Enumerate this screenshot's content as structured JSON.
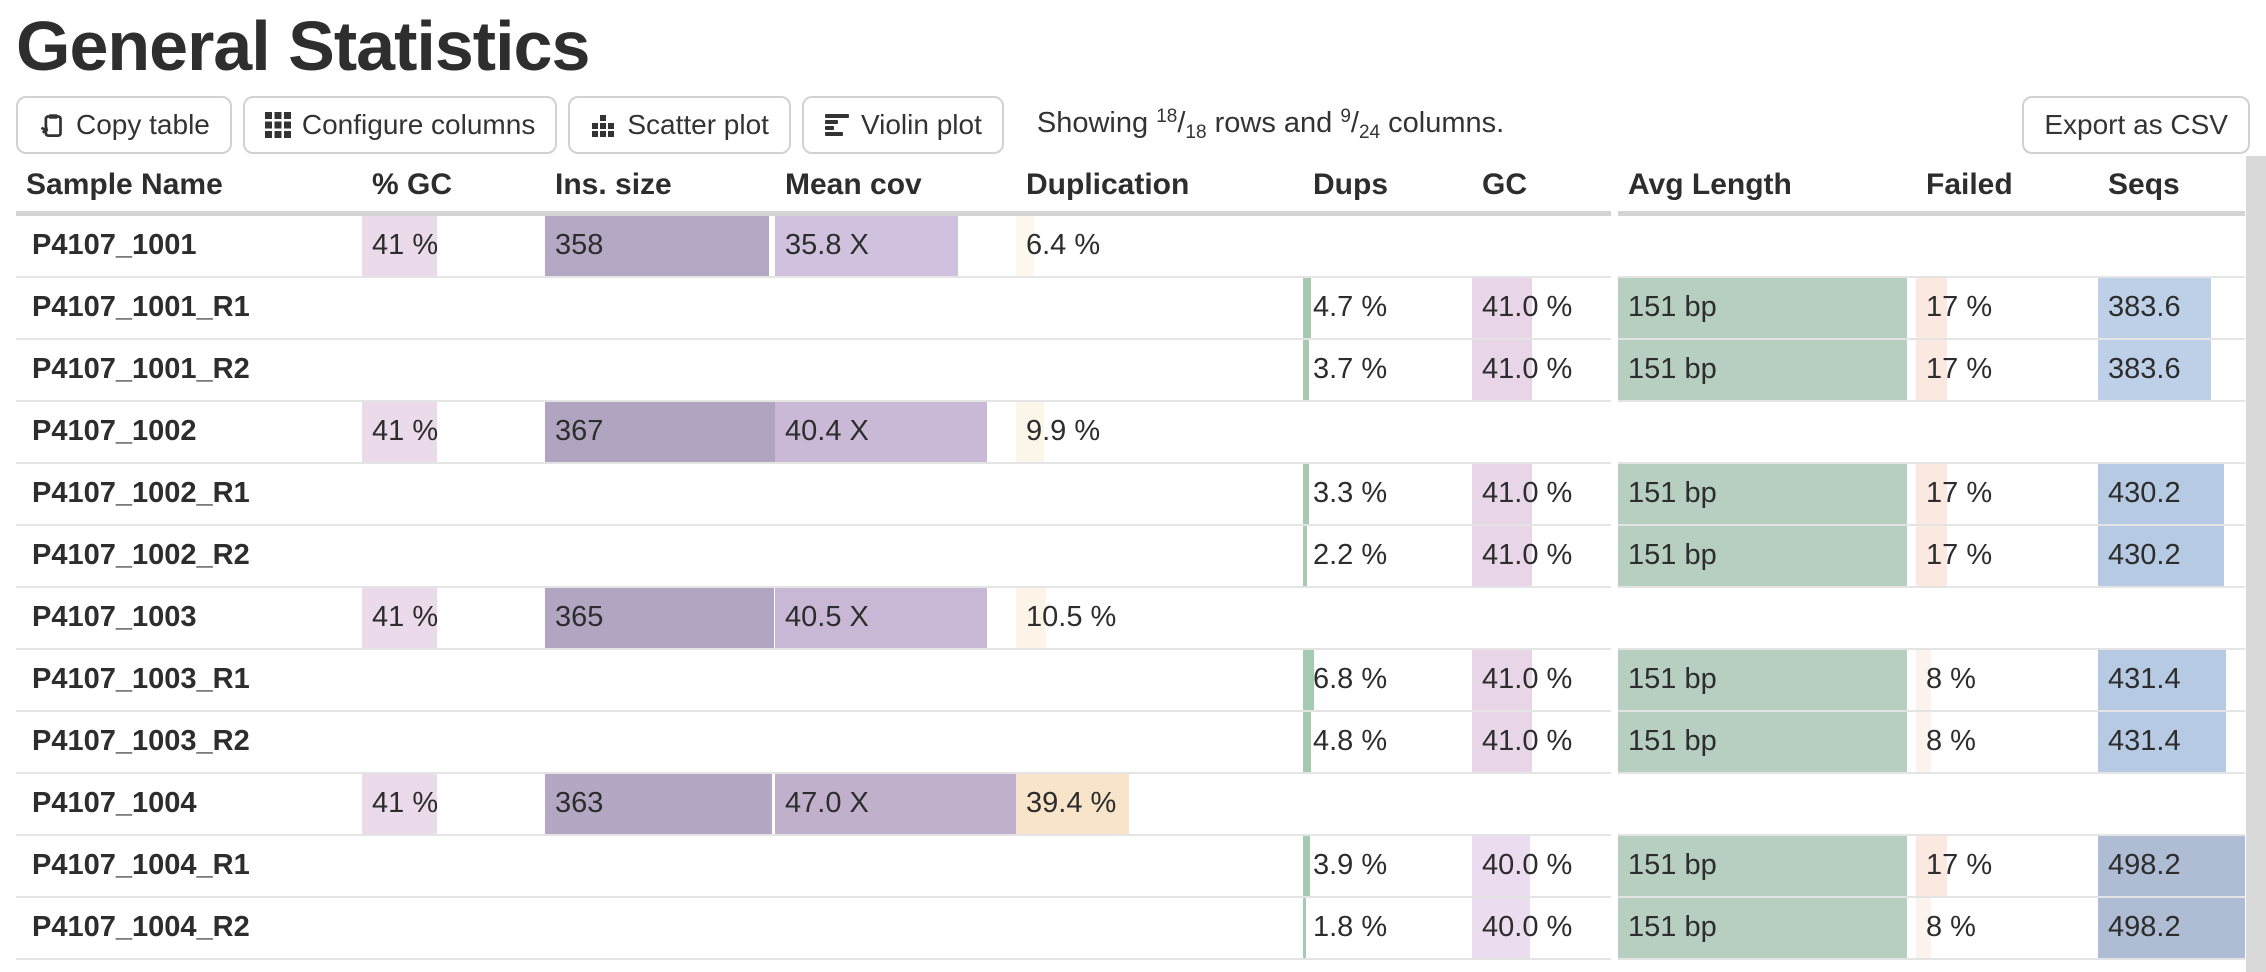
{
  "page": {
    "title": "General Statistics"
  },
  "toolbar": {
    "copy_table": "Copy table",
    "configure_columns": "Configure columns",
    "scatter_plot": "Scatter plot",
    "violin_plot": "Violin plot",
    "export_csv": "Export as CSV",
    "showing": {
      "prefix": "Showing ",
      "rows_shown": "18",
      "rows_total": "18",
      "between": " rows and ",
      "cols_shown": "9",
      "cols_total": "24",
      "suffix": " columns."
    }
  },
  "colors": {
    "row_divider": "#e4e4e4",
    "header_divider": "#d4d4d4",
    "gc_pink": "#e8d7e8",
    "ins_purple": "#b4a7c3",
    "cov_purple": "#c9b8d6",
    "dup_peach": "#f8e4c9",
    "dups_green": "#a6c9b1",
    "len_green": "#b7cfc1",
    "failed_peach": "#fbe8e0",
    "seqs_blue": "#b6cae3",
    "scrollbar": "#d9d9d9"
  },
  "table": {
    "columns": [
      "Sample Name",
      "% GC",
      "Ins. size",
      "Mean cov",
      "Duplication",
      "Dups",
      "GC",
      "Avg Length",
      "Failed",
      "Seqs"
    ],
    "rows": [
      {
        "cells": [
          {
            "text": "P4107_1001"
          },
          {
            "text": "41 %",
            "bar": 41,
            "color": "#eadaea"
          },
          {
            "text": "358",
            "bar": 97.5,
            "color": "#b5a8c4"
          },
          {
            "text": "35.8 X",
            "bar": 76,
            "color": "#d0c2de"
          },
          {
            "text": "6.4 %",
            "bar": 6.4,
            "color": "#fdf8ee"
          },
          null,
          null,
          null,
          null,
          null
        ]
      },
      {
        "cells": [
          {
            "text": "P4107_1001_R1"
          },
          null,
          null,
          null,
          null,
          {
            "text": "4.7 %",
            "bar": 4.7,
            "color": "#a6c9b1"
          },
          {
            "text": "41.0 %",
            "bar": 43,
            "color": "#e8d6e8"
          },
          {
            "text": "151 bp",
            "bar": 97,
            "color": "#b7cfc1"
          },
          {
            "text": "17 %",
            "bar": 17,
            "color": "#fbe8e0"
          },
          {
            "text": "383.6",
            "bar": 77,
            "color": "#bed0e8"
          }
        ]
      },
      {
        "cells": [
          {
            "text": "P4107_1001_R2"
          },
          null,
          null,
          null,
          null,
          {
            "text": "3.7 %",
            "bar": 3.7,
            "color": "#a6c9b1"
          },
          {
            "text": "41.0 %",
            "bar": 43,
            "color": "#e8d6e8"
          },
          {
            "text": "151 bp",
            "bar": 97,
            "color": "#b7cfc1"
          },
          {
            "text": "17 %",
            "bar": 17,
            "color": "#fbe8e0"
          },
          {
            "text": "383.6",
            "bar": 77,
            "color": "#bed0e8"
          }
        ]
      },
      {
        "cells": [
          {
            "text": "P4107_1002"
          },
          {
            "text": "41 %",
            "bar": 41,
            "color": "#eadaea"
          },
          {
            "text": "367",
            "bar": 100,
            "color": "#b1a4c1"
          },
          {
            "text": "40.4 X",
            "bar": 88,
            "color": "#c9b8d6"
          },
          {
            "text": "9.9 %",
            "bar": 9.9,
            "color": "#fcf5e9"
          },
          null,
          null,
          null,
          null,
          null
        ]
      },
      {
        "cells": [
          {
            "text": "P4107_1002_R1"
          },
          null,
          null,
          null,
          null,
          {
            "text": "3.3 %",
            "bar": 3.3,
            "color": "#a6c9b1"
          },
          {
            "text": "41.0 %",
            "bar": 43,
            "color": "#e8d6e8"
          },
          {
            "text": "151 bp",
            "bar": 97,
            "color": "#b7cfc1"
          },
          {
            "text": "17 %",
            "bar": 17,
            "color": "#fbe8e0"
          },
          {
            "text": "430.2",
            "bar": 86,
            "color": "#b6cae3"
          }
        ]
      },
      {
        "cells": [
          {
            "text": "P4107_1002_R2"
          },
          null,
          null,
          null,
          null,
          {
            "text": "2.2 %",
            "bar": 2.2,
            "color": "#a6c9b1"
          },
          {
            "text": "41.0 %",
            "bar": 43,
            "color": "#e8d6e8"
          },
          {
            "text": "151 bp",
            "bar": 97,
            "color": "#b7cfc1"
          },
          {
            "text": "17 %",
            "bar": 17,
            "color": "#fbe8e0"
          },
          {
            "text": "430.2",
            "bar": 86,
            "color": "#b6cae3"
          }
        ]
      },
      {
        "cells": [
          {
            "text": "P4107_1003"
          },
          {
            "text": "41 %",
            "bar": 41,
            "color": "#eadaea"
          },
          {
            "text": "365",
            "bar": 99.5,
            "color": "#b2a5c2"
          },
          {
            "text": "40.5 X",
            "bar": 88,
            "color": "#c9b8d5"
          },
          {
            "text": "10.5 %",
            "bar": 10.5,
            "color": "#fcf4e6"
          },
          null,
          null,
          null,
          null,
          null
        ]
      },
      {
        "cells": [
          {
            "text": "P4107_1003_R1"
          },
          null,
          null,
          null,
          null,
          {
            "text": "6.8 %",
            "bar": 6.8,
            "color": "#a6c9b1"
          },
          {
            "text": "41.0 %",
            "bar": 43,
            "color": "#e8d6e8"
          },
          {
            "text": "151 bp",
            "bar": 97,
            "color": "#b7cfc1"
          },
          {
            "text": "8 %",
            "bar": 8,
            "color": "#fdf3ed"
          },
          {
            "text": "431.4",
            "bar": 87,
            "color": "#b6cae3"
          }
        ]
      },
      {
        "cells": [
          {
            "text": "P4107_1003_R2"
          },
          null,
          null,
          null,
          null,
          {
            "text": "4.8 %",
            "bar": 4.8,
            "color": "#a6c9b1"
          },
          {
            "text": "41.0 %",
            "bar": 43,
            "color": "#e8d6e8"
          },
          {
            "text": "151 bp",
            "bar": 97,
            "color": "#b7cfc1"
          },
          {
            "text": "8 %",
            "bar": 8,
            "color": "#fdf3ed"
          },
          {
            "text": "431.4",
            "bar": 87,
            "color": "#b6cae3"
          }
        ]
      },
      {
        "cells": [
          {
            "text": "P4107_1004"
          },
          {
            "text": "41 %",
            "bar": 41,
            "color": "#eadaea"
          },
          {
            "text": "363",
            "bar": 98.9,
            "color": "#b4a7c3"
          },
          {
            "text": "47.0 X",
            "bar": 100,
            "color": "#c0b0cc"
          },
          {
            "text": "39.4 %",
            "bar": 39.4,
            "color": "#f8e4c9"
          },
          null,
          null,
          null,
          null,
          null
        ]
      },
      {
        "cells": [
          {
            "text": "P4107_1004_R1"
          },
          null,
          null,
          null,
          null,
          {
            "text": "3.9 %",
            "bar": 3.9,
            "color": "#a6c9b1"
          },
          {
            "text": "40.0 %",
            "bar": 42,
            "color": "#ecdcef"
          },
          {
            "text": "151 bp",
            "bar": 97,
            "color": "#b7cfc1"
          },
          {
            "text": "17 %",
            "bar": 17,
            "color": "#fbe8e0"
          },
          {
            "text": "498.2",
            "bar": 100,
            "color": "#aebdd4"
          }
        ]
      },
      {
        "cells": [
          {
            "text": "P4107_1004_R2"
          },
          null,
          null,
          null,
          null,
          {
            "text": "1.8 %",
            "bar": 1.8,
            "color": "#a6c9b1"
          },
          {
            "text": "40.0 %",
            "bar": 42,
            "color": "#ecdcef"
          },
          {
            "text": "151 bp",
            "bar": 97,
            "color": "#b7cfc1"
          },
          {
            "text": "8 %",
            "bar": 8,
            "color": "#fdf3ed"
          },
          {
            "text": "498.2",
            "bar": 100,
            "color": "#aebdd4"
          }
        ]
      }
    ]
  }
}
